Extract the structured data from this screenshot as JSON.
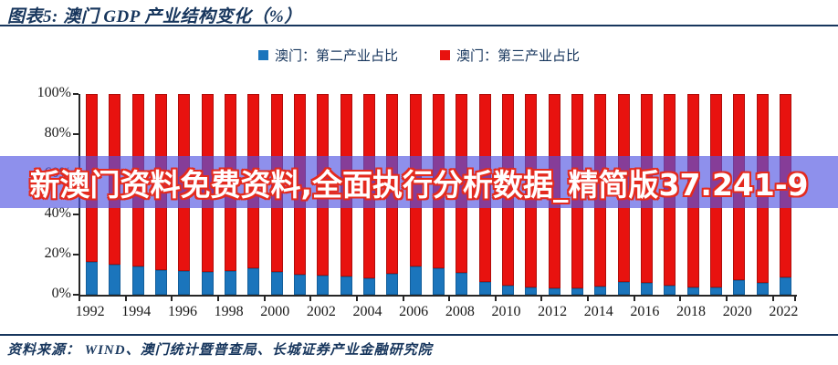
{
  "header": {
    "title": "图表5:  澳门 GDP 产业结构变化（%）"
  },
  "legend": [
    {
      "label": "澳门：第二产业占比",
      "color": "#1B75BC"
    },
    {
      "label": "澳门：第三产业占比",
      "color": "#E8120F"
    }
  ],
  "watermark": {
    "text": "新澳门资料免费资料,全面执行分析数据_精简版37.241-9",
    "band_color": "rgba(82,84,226,0.65)",
    "text_color": "#ffffff",
    "outline_color": "#e42a1e"
  },
  "footer": {
    "source": "资料来源：  WIND、澳门统计暨普查局、长城证券产业金融研究院"
  },
  "colors": {
    "navy": "#17365D",
    "axis": "#262626",
    "bar_blue": "#1B75BC",
    "bar_blue_border": "#135E9A",
    "bar_red": "#E8120F",
    "bar_red_border": "#B00D0A"
  },
  "chart_data": {
    "type": "bar",
    "stacked": true,
    "title": "澳门 GDP 产业结构变化（%）",
    "xlabel": "",
    "ylabel": "",
    "ylim": [
      0,
      100
    ],
    "grid": false,
    "legend_position": "top",
    "y_tick_labels": [
      "0%",
      "20%",
      "40%",
      "60%",
      "80%",
      "100%"
    ],
    "x_tick_labels": [
      "1992",
      "1994",
      "1996",
      "1998",
      "2000",
      "2002",
      "2004",
      "2006",
      "2008",
      "2010",
      "2012",
      "2014",
      "2016",
      "2018",
      "2020",
      "2022"
    ],
    "categories": [
      "1992",
      "1993",
      "1994",
      "1995",
      "1996",
      "1997",
      "1998",
      "1999",
      "2000",
      "2001",
      "2002",
      "2003",
      "2004",
      "2005",
      "2006",
      "2007",
      "2008",
      "2009",
      "2010",
      "2011",
      "2012",
      "2013",
      "2014",
      "2015",
      "2016",
      "2017",
      "2018",
      "2019",
      "2020",
      "2021",
      "2022"
    ],
    "series": [
      {
        "name": "澳门：第二产业占比",
        "color": "#1B75BC",
        "values": [
          16.5,
          15,
          14,
          12.5,
          12,
          11.5,
          12,
          13,
          11.5,
          10,
          9.5,
          9,
          8,
          10.5,
          14,
          13,
          11,
          6.5,
          4.5,
          3.5,
          3,
          3,
          4,
          6.5,
          6,
          4.5,
          3.5,
          3.5,
          7.5,
          6,
          8.5
        ]
      },
      {
        "name": "澳门：第三产业占比",
        "color": "#E8120F",
        "values": [
          83.5,
          85,
          86,
          87.5,
          88,
          88.5,
          88,
          87,
          88.5,
          90,
          90.5,
          91,
          92,
          89.5,
          86,
          87,
          89,
          93.5,
          95.5,
          96.5,
          97,
          97,
          96,
          93.5,
          94,
          95.5,
          96.5,
          96.5,
          92.5,
          94,
          91.5
        ]
      }
    ]
  }
}
